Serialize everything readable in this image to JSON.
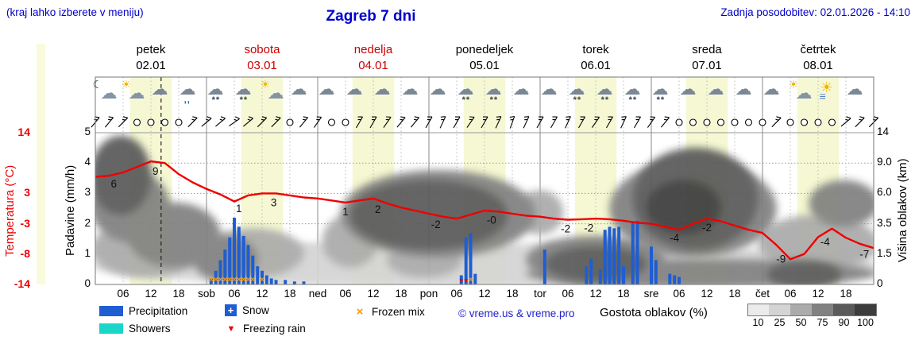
{
  "header": {
    "hint": "(kraj lahko izberete v meniju)",
    "title": "Zagreb 7 dni",
    "updated": "Zadnja posodobitev: 02.01.2026 - 14:10"
  },
  "days": [
    {
      "name": "petek",
      "date": "02.01",
      "highlight": false
    },
    {
      "name": "sobota",
      "date": "03.01",
      "highlight": true
    },
    {
      "name": "nedelja",
      "date": "04.01",
      "highlight": true
    },
    {
      "name": "ponedeljek",
      "date": "05.01",
      "highlight": false
    },
    {
      "name": "torek",
      "date": "06.01",
      "highlight": false
    },
    {
      "name": "sreda",
      "date": "07.01",
      "highlight": false
    },
    {
      "name": "četrtek",
      "date": "08.01",
      "highlight": false
    }
  ],
  "axes": {
    "temp_label": "Temperatura (°C)",
    "temp_ticks": [
      "14",
      "3",
      "-3",
      "-8",
      "-14"
    ],
    "precip_label": "Padavine (mm/h)",
    "precip_ticks": [
      "5",
      "4",
      "3",
      "2",
      "1",
      "0"
    ],
    "cloud_label": "Višina oblakov (km)",
    "cloud_ticks": [
      "14",
      "9.0",
      "6.0",
      "3.5",
      "1.5",
      "0"
    ],
    "x_ticks": [
      "06",
      "12",
      "18",
      "sob",
      "06",
      "12",
      "18",
      "ned",
      "06",
      "12",
      "18",
      "pon",
      "06",
      "12",
      "18",
      "tor",
      "06",
      "12",
      "18",
      "sre",
      "06",
      "12",
      "18",
      "čet",
      "06",
      "12",
      "18"
    ]
  },
  "icons": {
    "snow_marker": "+",
    "frozen_marker": "×",
    "freezing_marker": "▼"
  },
  "colors": {
    "link": "#0000cc",
    "temp_line": "#ee0000",
    "precipitation": "#1e5ed2",
    "showers": "#1ad6c8",
    "frozen_mix": "#ff9900",
    "freezing_rain": "#ee0000",
    "daylight_band": "#f5f8d2",
    "cloud_density": {
      "10": "#ebebeb",
      "25": "#d4d4d4",
      "50": "#ababab",
      "75": "#818181",
      "90": "#5a5a5a",
      "100": "#3c3c3c"
    }
  },
  "chart_data": {
    "type": "meteogram",
    "x_unit": "hours from 02.01 00:00",
    "x_range": [
      0,
      168
    ],
    "now_hour": 14.2,
    "daylight_bands": {
      "start_hour": 7.5,
      "end_hour": 16.5
    },
    "temperature": {
      "unit": "°C",
      "step_hours": 3,
      "values": [
        6.0,
        6.2,
        6.8,
        7.8,
        8.8,
        8.5,
        6.5,
        5.0,
        3.8,
        2.8,
        1.4,
        2.6,
        3.0,
        3.0,
        2.6,
        2.2,
        2.0,
        1.6,
        1.2,
        1.6,
        2.0,
        1.0,
        0.2,
        -0.4,
        -1.0,
        -1.6,
        -2.0,
        -1.2,
        -0.4,
        -0.6,
        -1.0,
        -1.4,
        -1.6,
        -2.0,
        -2.2,
        -2.1,
        -2.0,
        -2.1,
        -2.4,
        -2.8,
        -3.0,
        -3.5,
        -4.0,
        -3.0,
        -2.0,
        -2.5,
        -3.3,
        -4.0,
        -4.5,
        -6.5,
        -9.0,
        -8.0,
        -5.2,
        -3.8,
        -5.3,
        -6.3,
        -7.0
      ],
      "point_labels": [
        {
          "h": 4,
          "text": "6"
        },
        {
          "h": 13,
          "text": "9"
        },
        {
          "h": 31,
          "text": "1"
        },
        {
          "h": 38.5,
          "text": "3"
        },
        {
          "h": 54,
          "text": "1"
        },
        {
          "h": 61,
          "text": "2"
        },
        {
          "h": 73.5,
          "text": "-2"
        },
        {
          "h": 85.5,
          "text": "-0"
        },
        {
          "h": 101.5,
          "text": "-2"
        },
        {
          "h": 106.5,
          "text": "-2"
        },
        {
          "h": 125,
          "text": "-4"
        },
        {
          "h": 132,
          "text": "-2"
        },
        {
          "h": 148,
          "text": "-9"
        },
        {
          "h": 157.5,
          "text": "-4"
        },
        {
          "h": 166,
          "text": "-7"
        }
      ]
    },
    "precipitation": {
      "unit": "mm/h",
      "bars": [
        [
          25,
          0.2
        ],
        [
          26,
          0.45
        ],
        [
          27,
          0.8
        ],
        [
          28,
          1.15
        ],
        [
          29,
          1.55
        ],
        [
          30,
          2.2
        ],
        [
          31,
          1.9
        ],
        [
          32,
          1.6
        ],
        [
          33,
          1.3
        ],
        [
          34,
          0.95
        ],
        [
          35,
          0.6
        ],
        [
          36,
          0.45
        ],
        [
          37,
          0.3
        ],
        [
          38,
          0.2
        ],
        [
          39,
          0.15
        ],
        [
          41,
          0.15
        ],
        [
          43,
          0.1
        ],
        [
          45,
          0.1
        ],
        [
          79,
          0.3
        ],
        [
          80,
          1.55
        ],
        [
          81,
          1.7
        ],
        [
          82,
          0.35
        ],
        [
          97,
          1.15
        ],
        [
          106,
          0.6
        ],
        [
          107,
          0.85
        ],
        [
          109,
          0.5
        ],
        [
          110,
          1.8
        ],
        [
          111,
          1.9
        ],
        [
          112,
          1.85
        ],
        [
          113,
          1.9
        ],
        [
          114,
          0.6
        ],
        [
          116,
          2.05
        ],
        [
          117,
          2.1
        ],
        [
          120,
          1.25
        ],
        [
          121,
          0.8
        ],
        [
          124,
          0.35
        ],
        [
          125,
          0.3
        ],
        [
          126,
          0.25
        ]
      ]
    },
    "frozen_mix_hours": [
      25,
      26,
      27,
      28,
      29,
      30,
      31,
      32,
      33,
      34,
      36,
      81
    ],
    "freezing_rain_hours": [
      79,
      80
    ],
    "weather_icons": {
      "step_hours": 6,
      "start_hour": 2,
      "types": [
        "moon-cloud",
        "sun-cloud",
        "cloud",
        "cloud-drizzle",
        "cloud-snow",
        "cloud-snow",
        "sun-cloud",
        "cloud",
        "cloud",
        "cloud",
        "cloud",
        "cloud",
        "cloud",
        "cloud-snow",
        "cloud-snow",
        "cloud",
        "cloud",
        "cloud-snow",
        "cloud-snow",
        "cloud-snow",
        "cloud-snow",
        "cloud",
        "cloud",
        "cloud",
        "cloud",
        "sun-cloud",
        "sun-haze",
        "cloud"
      ]
    },
    "wind": {
      "step_hours": 3,
      "symbols": [
        "b50",
        "b50",
        "b45",
        "c",
        "c",
        "c",
        "c",
        "b45",
        "b40",
        "b40",
        "b35",
        "b40",
        "b45",
        "b45",
        "c",
        "b50",
        "b55",
        "c",
        "c",
        "b60",
        "b60",
        "b55",
        "b50",
        "b50",
        "b60",
        "b65",
        "b60",
        "b55",
        "b60",
        "b65",
        "b70",
        "b65",
        "b60",
        "b60",
        "b65",
        "b60",
        "b55",
        "b60",
        "b65",
        "b60",
        "b55",
        "b50",
        "c",
        "c",
        "c",
        "c",
        "c",
        "c",
        "c",
        "b45",
        "c",
        "c",
        "c",
        "c",
        "b40",
        "b45",
        "b45"
      ]
    },
    "cloud_cover": {
      "unit": "% density by altitude (km)",
      "regions": [
        {
          "h0": 0,
          "h1": 168,
          "km0": 0,
          "km1": 2.0,
          "density": 25
        },
        {
          "h0": 0,
          "h1": 22,
          "km0": 0.5,
          "km1": 3.5,
          "density": 50
        },
        {
          "h0": 0,
          "h1": 11,
          "km0": 4.5,
          "km1": 13,
          "density": 90
        },
        {
          "h0": 0,
          "h1": 15,
          "km0": 2.5,
          "km1": 8,
          "density": 75
        },
        {
          "h0": 8,
          "h1": 26,
          "km0": 1,
          "km1": 5,
          "density": 75
        },
        {
          "h0": 22,
          "h1": 34,
          "km0": 0.3,
          "km1": 2.5,
          "density": 75
        },
        {
          "h0": 24,
          "h1": 44,
          "km0": 0.5,
          "km1": 3,
          "density": 50
        },
        {
          "h0": 40,
          "h1": 52,
          "km0": 0.5,
          "km1": 2,
          "density": 25
        },
        {
          "h0": 50,
          "h1": 60,
          "km0": 1,
          "km1": 4,
          "density": 50
        },
        {
          "h0": 54,
          "h1": 94,
          "km0": 1.5,
          "km1": 8,
          "density": 75
        },
        {
          "h0": 56,
          "h1": 88,
          "km0": 2,
          "km1": 7,
          "density": 90
        },
        {
          "h0": 64,
          "h1": 78,
          "km0": 0.5,
          "km1": 2,
          "density": 50
        },
        {
          "h0": 92,
          "h1": 100,
          "km0": 3,
          "km1": 6,
          "density": 50
        },
        {
          "h0": 94,
          "h1": 122,
          "km0": 0.2,
          "km1": 2.5,
          "density": 75
        },
        {
          "h0": 98,
          "h1": 118,
          "km0": 0.3,
          "km1": 1.8,
          "density": 90
        },
        {
          "h0": 112,
          "h1": 146,
          "km0": 1.5,
          "km1": 9,
          "density": 75
        },
        {
          "h0": 117,
          "h1": 142,
          "km0": 2,
          "km1": 11,
          "density": 90
        },
        {
          "h0": 120,
          "h1": 134,
          "km0": 3,
          "km1": 7,
          "density": 100
        },
        {
          "h0": 94,
          "h1": 168,
          "km0": 0,
          "km1": 1.1,
          "density": 75
        },
        {
          "h0": 144,
          "h1": 168,
          "km0": 0.8,
          "km1": 4,
          "density": 50
        },
        {
          "h0": 155,
          "h1": 168,
          "km0": 3.5,
          "km1": 7,
          "density": 75
        },
        {
          "h0": 146,
          "h1": 160,
          "km0": 0,
          "km1": 1,
          "density": 90
        }
      ]
    }
  },
  "legend": {
    "items": [
      {
        "label": "Precipitation"
      },
      {
        "label": "Snow"
      },
      {
        "label": "Frozen mix"
      },
      {
        "label": "Showers"
      },
      {
        "label": "Freezing rain"
      }
    ],
    "copyright": "© vreme.us & vreme.pro",
    "cloud_scale_label": "Gostota oblakov (%)",
    "cloud_scale_ticks": [
      "10",
      "25",
      "50",
      "75",
      "90",
      "100"
    ]
  }
}
